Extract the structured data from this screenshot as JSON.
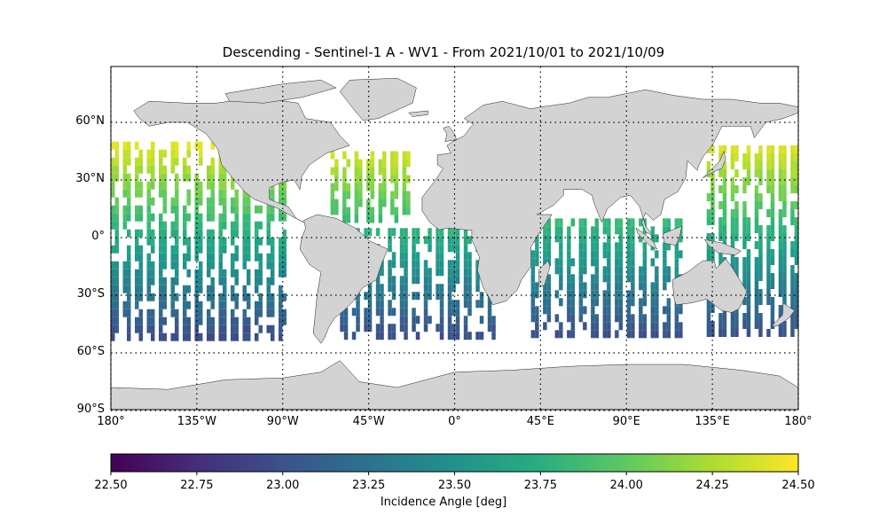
{
  "title": "Descending - Sentinel-1 A - WV1 - From 2021/10/01 to 2021/10/09",
  "map": {
    "projection": "PlateCarree",
    "lon_range": [
      -180,
      180
    ],
    "lat_range": [
      -90,
      90
    ],
    "land_color": "#d3d3d3",
    "coastline_color": "#222222",
    "gridlines": "dotted",
    "lat_ticks": [
      "60°N",
      "30°N",
      "0°",
      "30°S",
      "60°S",
      "90°S"
    ],
    "lon_ticks": [
      "180°",
      "135°W",
      "90°W",
      "45°W",
      "0°",
      "45°E",
      "90°E",
      "135°E",
      "180°"
    ]
  },
  "colorbar": {
    "colormap": "viridis",
    "min": 22.5,
    "max": 24.5,
    "ticks": [
      "22.50",
      "22.75",
      "23.00",
      "23.25",
      "23.50",
      "23.75",
      "24.00",
      "24.25",
      "24.50"
    ],
    "label": "Incidence Angle [deg]"
  },
  "chart_data": {
    "type": "heatmap",
    "title": "Descending - Sentinel-1 A - WV1 - From 2021/10/01 to 2021/10/09",
    "variable": "Incidence Angle [deg]",
    "value_range": [
      22.5,
      24.5
    ],
    "note_values": "cells coloured by incidence angle; angle decreases southward from ~24.4 (40°N) to ~23.0 (50°S)",
    "swaths": [
      {
        "region": "North/Central Pacific",
        "lon": [
          -180,
          -88
        ],
        "lat": [
          -50,
          50
        ]
      },
      {
        "region": "North Atlantic",
        "lon": [
          -65,
          -25
        ],
        "lat": [
          10,
          45
        ]
      },
      {
        "region": "South Atlantic",
        "lon": [
          -60,
          20
        ],
        "lat": [
          -50,
          5
        ]
      },
      {
        "region": "Indian Ocean",
        "lon": [
          40,
          120
        ],
        "lat": [
          -50,
          10
        ]
      },
      {
        "region": "West Pacific",
        "lon": [
          132,
          180
        ],
        "lat": [
          -50,
          48
        ]
      }
    ]
  }
}
